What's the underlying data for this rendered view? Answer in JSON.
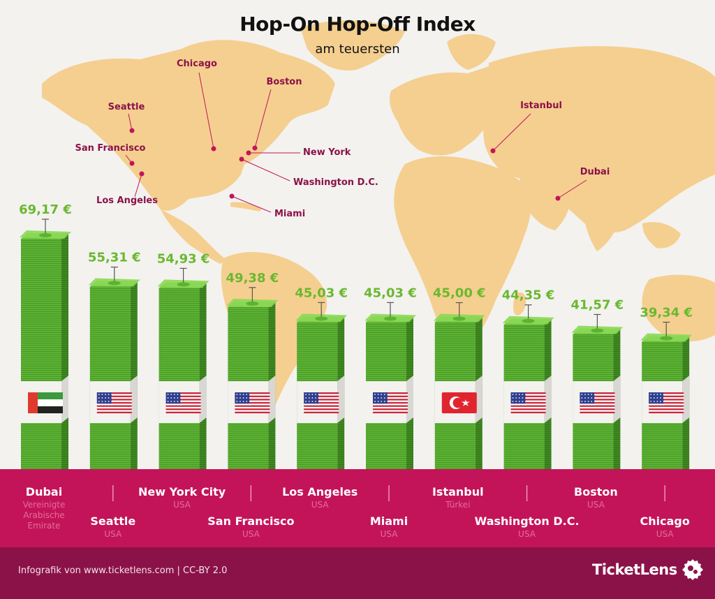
{
  "header": {
    "title": "Hop-On Hop-Off Index",
    "subtitle": "am teuersten"
  },
  "footer": {
    "credit": "Infografik von www.ticketlens.com | CC-BY 2.0",
    "brand": "TicketLens"
  },
  "colors": {
    "money_green": "#5cb233",
    "money_dark": "#3f8a21",
    "value_green": "#6ab82f",
    "magenta": "#c3145a",
    "footer_dark": "#8b1248",
    "map_land": "#f5cf90",
    "map_marker": "#c3145a"
  },
  "map_labels": [
    {
      "name": "Chicago"
    },
    {
      "name": "Boston"
    },
    {
      "name": "Seattle"
    },
    {
      "name": "San Francisco"
    },
    {
      "name": "Los Angeles"
    },
    {
      "name": "New York"
    },
    {
      "name": "Washington D.C."
    },
    {
      "name": "Miami"
    },
    {
      "name": "Istanbul"
    },
    {
      "name": "Dubai"
    }
  ],
  "chart_data": {
    "type": "bar",
    "title": "Hop-On Hop-Off Index",
    "subtitle": "am teuersten",
    "unit": "€",
    "categories": [
      "Dubai",
      "Seattle",
      "New York City",
      "San Francisco",
      "Los Angeles",
      "Miami",
      "Istanbul",
      "Washington D.C.",
      "Boston",
      "Chicago"
    ],
    "countries": [
      "Vereinigte Arabische Emirate",
      "USA",
      "USA",
      "USA",
      "USA",
      "USA",
      "Türkei",
      "USA",
      "USA",
      "USA"
    ],
    "flags": [
      "uae-flag",
      "usa-flag",
      "usa-flag",
      "usa-flag",
      "usa-flag",
      "usa-flag",
      "turkey-flag",
      "usa-flag",
      "usa-flag",
      "usa-flag"
    ],
    "values": [
      69.17,
      55.31,
      54.93,
      49.38,
      45.03,
      45.03,
      45.0,
      44.35,
      41.57,
      39.34
    ],
    "value_labels": [
      "69,17 €",
      "55,31 €",
      "54,93 €",
      "49,38 €",
      "45,03 €",
      "45,03 €",
      "45,00 €",
      "44,35 €",
      "41,57 €",
      "39,34 €"
    ],
    "ylim": [
      0,
      69.17
    ]
  }
}
